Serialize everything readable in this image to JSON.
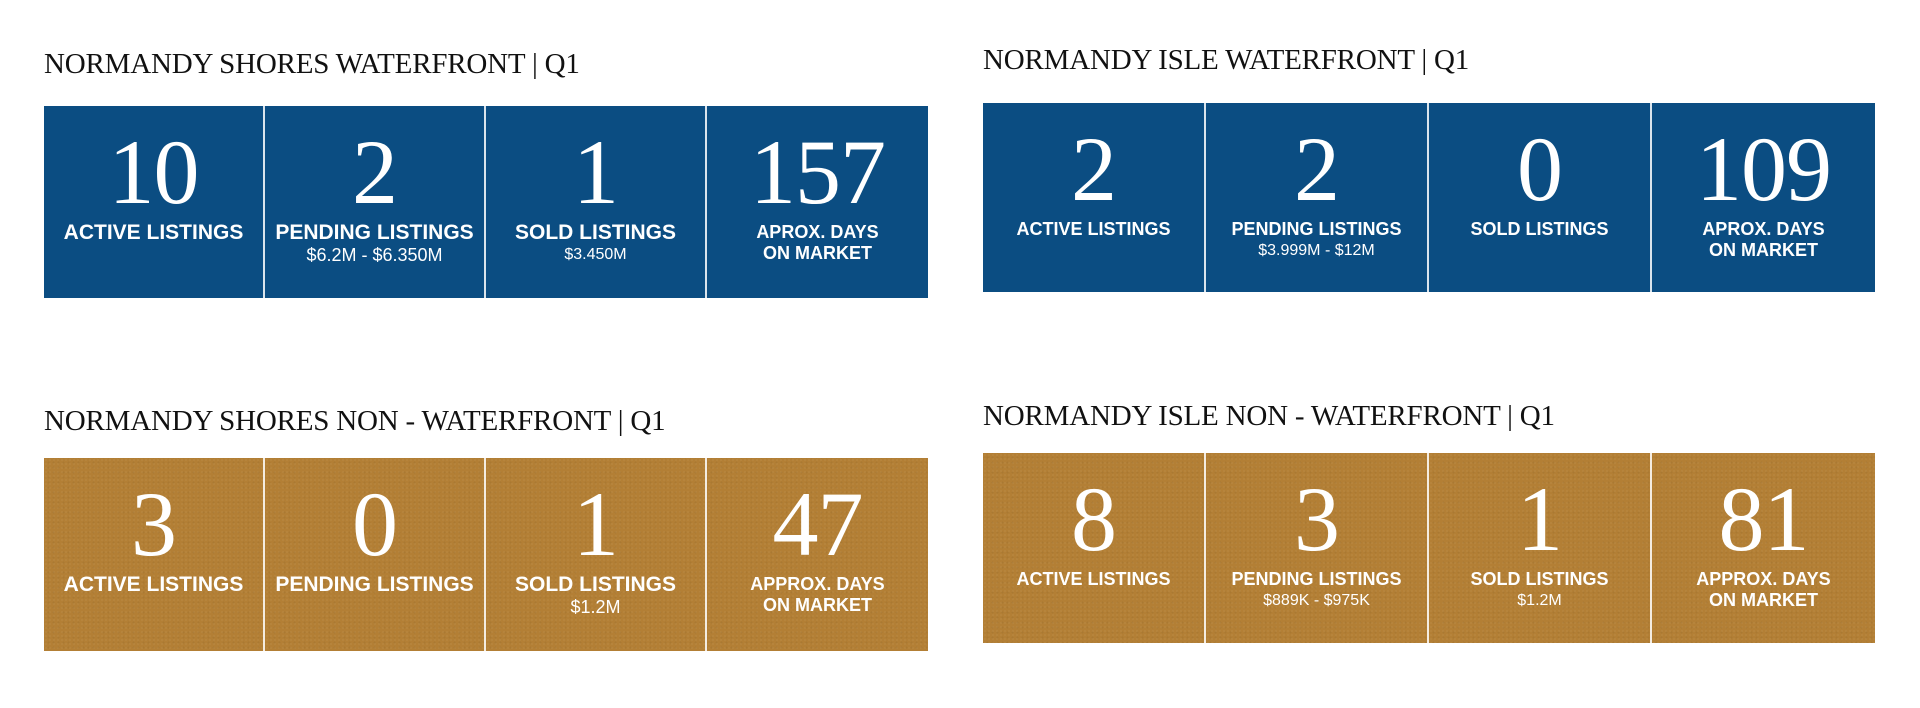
{
  "sections": [
    {
      "title": "NORMANDY SHORES WATERFRONT | Q1",
      "cells": [
        {
          "number": "10",
          "label": "ACTIVE LISTINGS",
          "sub": ""
        },
        {
          "number": "2",
          "label": "PENDING LISTINGS",
          "sub": "$6.2M - $6.350M"
        },
        {
          "number": "1",
          "label": "SOLD LISTINGS",
          "sub": "$3.450M"
        },
        {
          "number": "157",
          "label": "APROX. DAYS ON MARKET",
          "sub": ""
        }
      ]
    },
    {
      "title": "NORMANDY ISLE WATERFRONT | Q1",
      "cells": [
        {
          "number": "2",
          "label": "ACTIVE LISTINGS",
          "sub": ""
        },
        {
          "number": "2",
          "label": "PENDING LISTINGS",
          "sub": "$3.999M - $12M"
        },
        {
          "number": "0",
          "label": "SOLD LISTINGS",
          "sub": ""
        },
        {
          "number": "109",
          "label": "APROX. DAYS ON MARKET",
          "sub": ""
        }
      ]
    },
    {
      "title": "NORMANDY SHORES NON - WATERFRONT | Q1",
      "cells": [
        {
          "number": "3",
          "label": "ACTIVE LISTINGS",
          "sub": ""
        },
        {
          "number": "0",
          "label": "PENDING LISTINGS",
          "sub": ""
        },
        {
          "number": "1",
          "label": "SOLD LISTINGS",
          "sub": "$1.2M"
        },
        {
          "number": "47",
          "label": "APPROX. DAYS ON MARKET",
          "sub": ""
        }
      ]
    },
    {
      "title": "NORMANDY ISLE NON - WATERFRONT | Q1",
      "cells": [
        {
          "number": "8",
          "label": "ACTIVE LISTINGS",
          "sub": ""
        },
        {
          "number": "3",
          "label": "PENDING LISTINGS",
          "sub": "$889K - $975K"
        },
        {
          "number": "1",
          "label": "SOLD LISTINGS",
          "sub": "$1.2M"
        },
        {
          "number": "81",
          "label": "APPROX. DAYS ON MARKET",
          "sub": ""
        }
      ]
    }
  ],
  "colors": {
    "blue": "#0b4d82",
    "gold": "#b37f35"
  }
}
